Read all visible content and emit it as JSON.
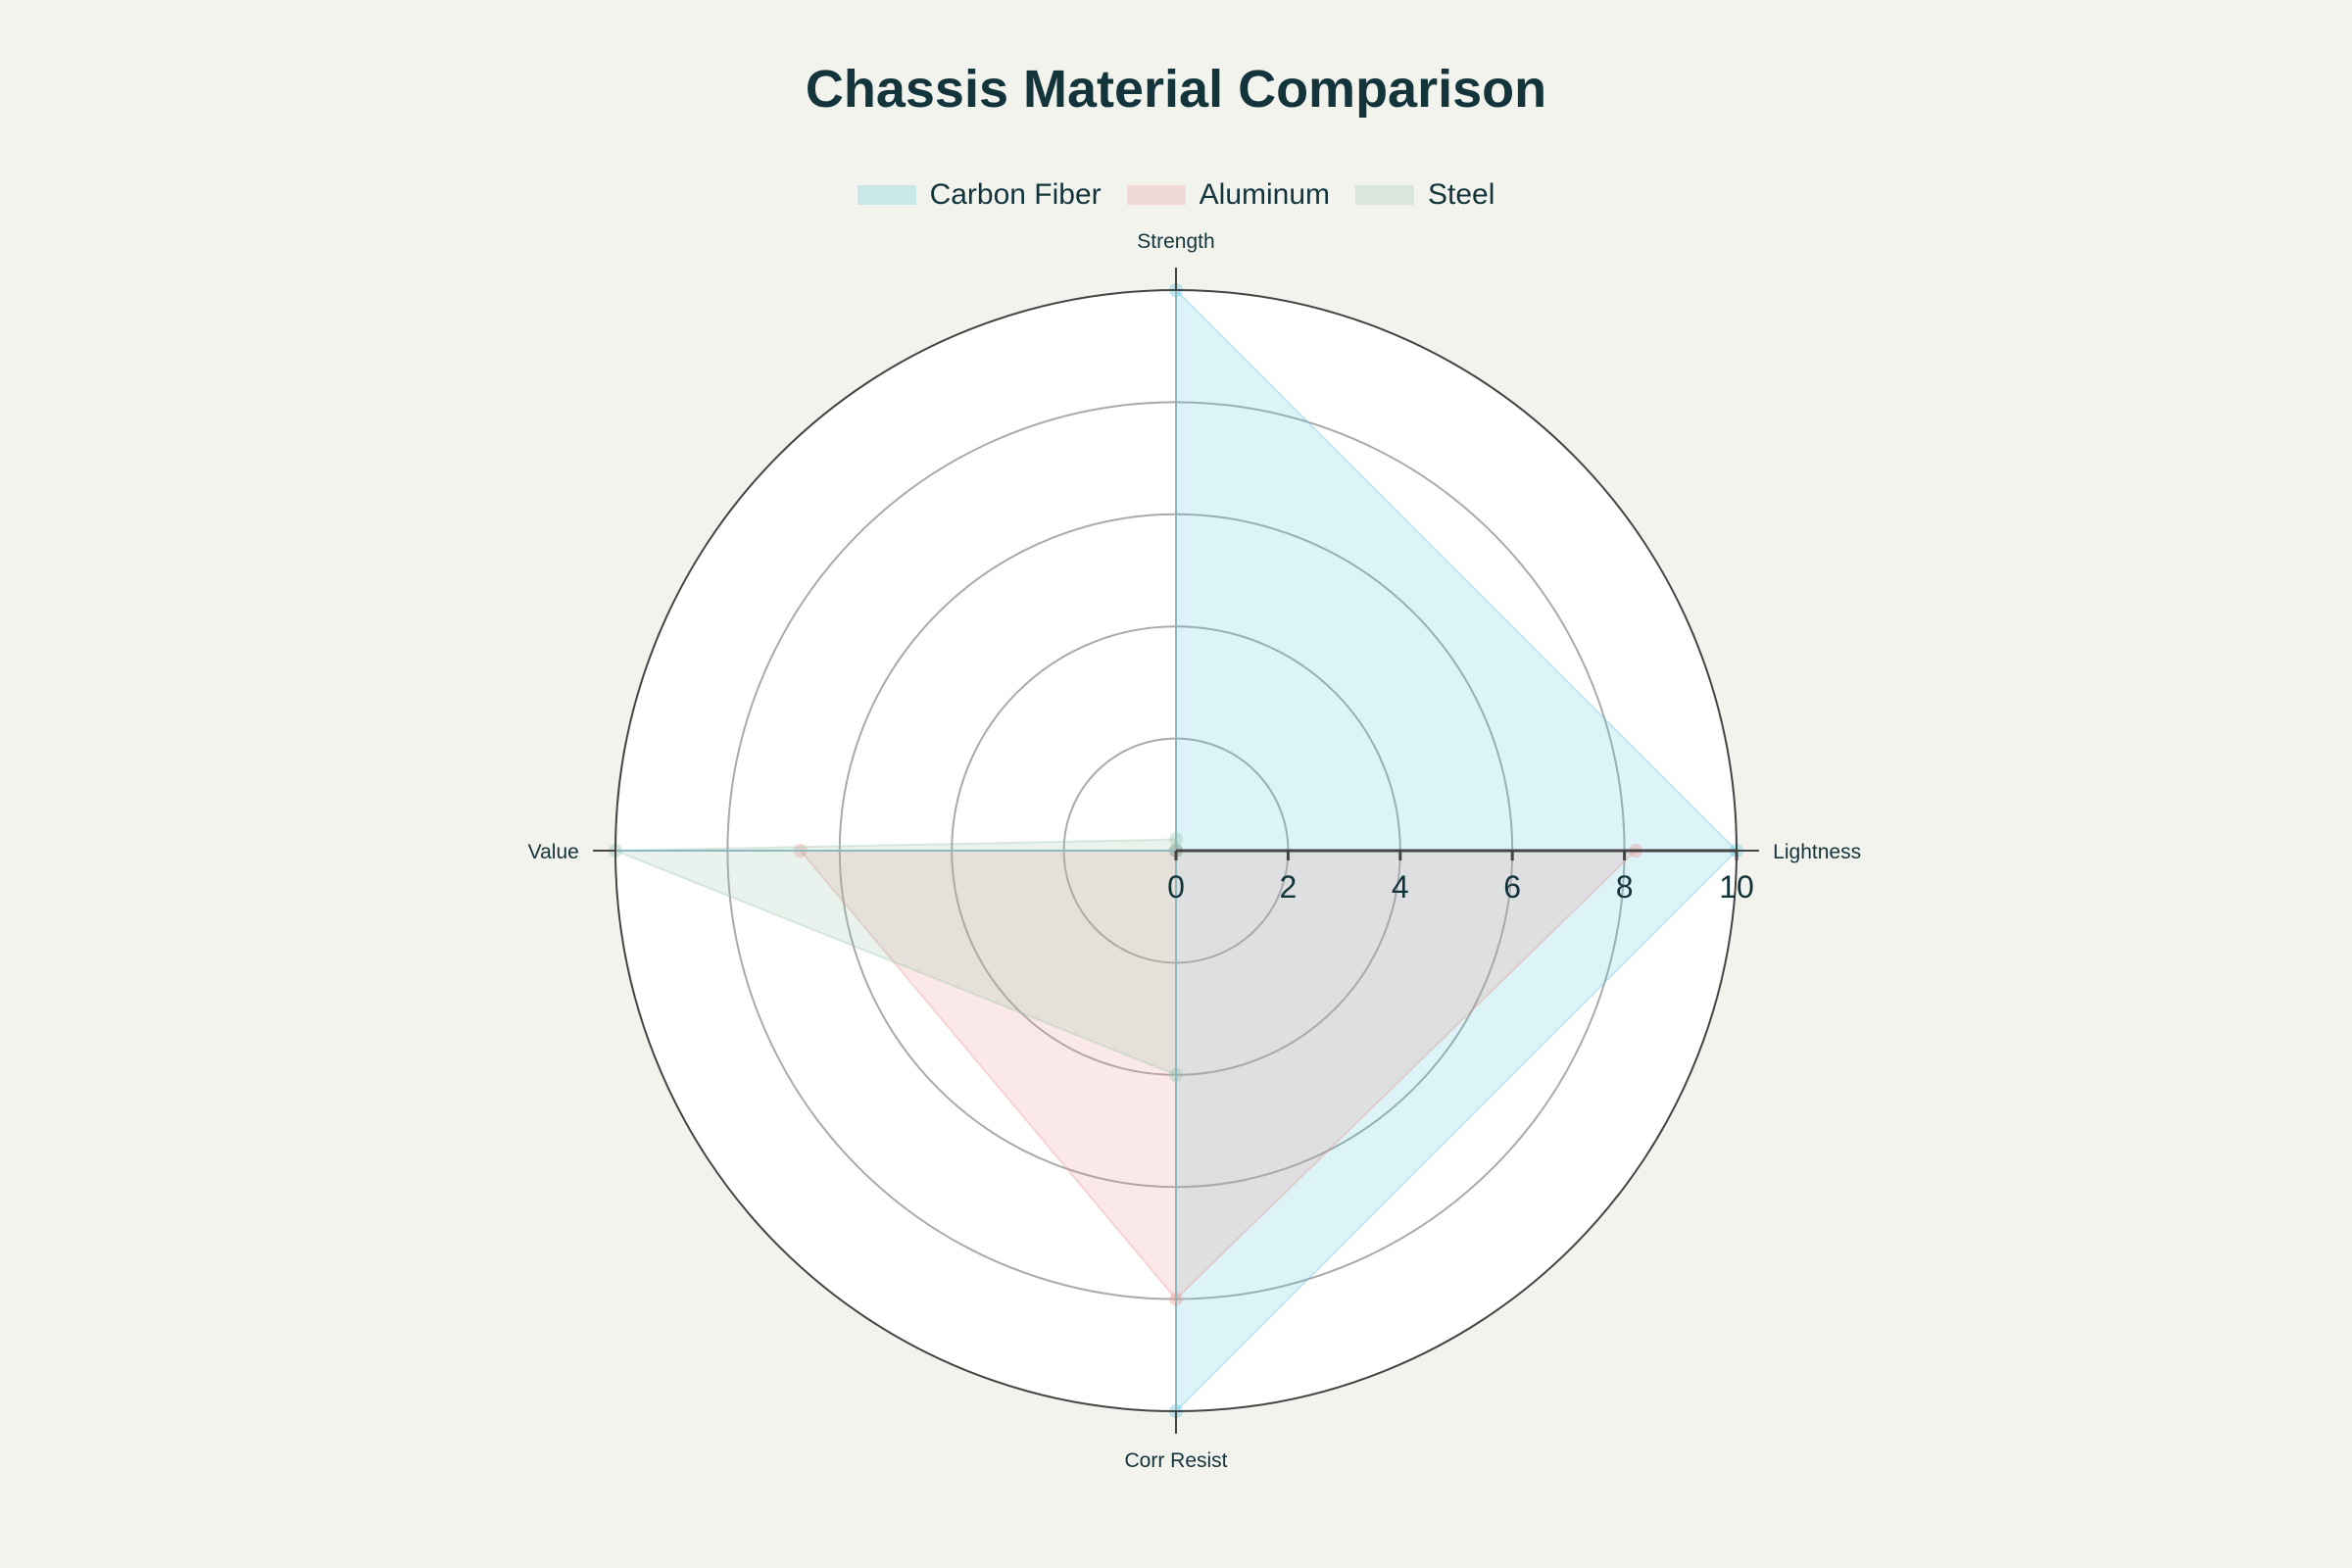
{
  "chart_data": {
    "type": "radar",
    "title": "Chassis Material Comparison",
    "axes": [
      "Strength",
      "Lightness",
      "Corr Resist",
      "Value"
    ],
    "radial_range": [
      0,
      10
    ],
    "radial_ticks": [
      0,
      2,
      4,
      6,
      8,
      10
    ],
    "legend_position": "top",
    "series": [
      {
        "name": "Carbon Fiber",
        "values": [
          10,
          10,
          10,
          0
        ],
        "color": "#4fc3d9"
      },
      {
        "name": "Aluminum",
        "values": [
          0,
          8.2,
          8,
          6.7
        ],
        "color": "#e8908c"
      },
      {
        "name": "Steel",
        "values": [
          0.2,
          0,
          4,
          10
        ],
        "color": "#8fc0a3"
      }
    ]
  }
}
